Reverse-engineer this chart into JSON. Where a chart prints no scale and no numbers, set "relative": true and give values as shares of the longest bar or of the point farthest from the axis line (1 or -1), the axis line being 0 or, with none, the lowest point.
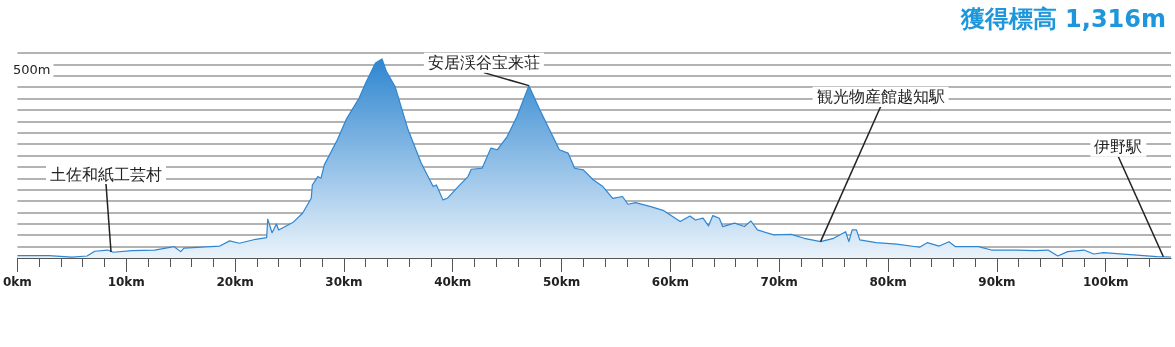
{
  "chart_data": {
    "type": "area",
    "title": "獲得標高 1,316m",
    "relative": true,
    "grid": "y",
    "color": "#2f86d0",
    "x": [
      0,
      2.9,
      5.0,
      6.4,
      7.1,
      8.3,
      8.8,
      10.5,
      12.6,
      14.4,
      15.0,
      15.3,
      18.6,
      19.5,
      20.4,
      21.9,
      22.9,
      23.0,
      23.4,
      23.8,
      24.0,
      25.3,
      26.2,
      27.0,
      27.1,
      27.6,
      27.9,
      28.2,
      29.4,
      30.2,
      31.4,
      32.0,
      32.9,
      33.5,
      33.9,
      34.7,
      35.9,
      37.1,
      38.2,
      38.5,
      39.1,
      39.5,
      40.5,
      41.4,
      41.7,
      42.7,
      43.5,
      44.1,
      45.0,
      45.9,
      47.0,
      48.0,
      49.2,
      49.8,
      50.6,
      51.2,
      52.0,
      52.9,
      53.8,
      54.7,
      55.6,
      56.1,
      56.8,
      58.2,
      59.4,
      60.9,
      61.8,
      62.3,
      63.0,
      63.5,
      63.9,
      64.5,
      64.8,
      65.9,
      66.8,
      67.4,
      68.0,
      69.5,
      71.1,
      72.3,
      73.8,
      75.0,
      76.1,
      76.4,
      76.7,
      77.1,
      77.4,
      78.9,
      80.8,
      82.9,
      83.6,
      84.7,
      85.6,
      86.2,
      88.3,
      89.5,
      91.7,
      93.5,
      94.7,
      95.6,
      96.5,
      98.0,
      98.9,
      99.8,
      104.7,
      106.0
    ],
    "values": [
      0.012,
      0.012,
      0.004,
      0.01,
      0.034,
      0.04,
      0.029,
      0.037,
      0.04,
      0.057,
      0.032,
      0.05,
      0.06,
      0.086,
      0.074,
      0.094,
      0.102,
      0.195,
      0.127,
      0.171,
      0.141,
      0.178,
      0.225,
      0.3,
      0.367,
      0.409,
      0.401,
      0.468,
      0.594,
      0.695,
      0.804,
      0.879,
      0.98,
      1.0,
      0.938,
      0.862,
      0.644,
      0.477,
      0.359,
      0.367,
      0.292,
      0.3,
      0.359,
      0.409,
      0.446,
      0.451,
      0.552,
      0.544,
      0.61,
      0.711,
      0.866,
      0.745,
      0.61,
      0.544,
      0.527,
      0.451,
      0.443,
      0.393,
      0.359,
      0.3,
      0.309,
      0.27,
      0.278,
      0.258,
      0.238,
      0.183,
      0.211,
      0.191,
      0.2,
      0.161,
      0.213,
      0.2,
      0.158,
      0.175,
      0.158,
      0.186,
      0.141,
      0.116,
      0.119,
      0.099,
      0.082,
      0.099,
      0.132,
      0.082,
      0.141,
      0.141,
      0.091,
      0.077,
      0.07,
      0.054,
      0.077,
      0.06,
      0.082,
      0.057,
      0.057,
      0.04,
      0.04,
      0.037,
      0.04,
      0.01,
      0.032,
      0.04,
      0.02,
      0.027,
      0.007,
      0.005
    ],
    "xlim": [
      0,
      106
    ],
    "xticks": [
      {
        "value": 0,
        "label": "0km"
      },
      {
        "value": 10,
        "label": "10km"
      },
      {
        "value": 20,
        "label": "20km"
      },
      {
        "value": 30,
        "label": "30km"
      },
      {
        "value": 40,
        "label": "40km"
      },
      {
        "value": 50,
        "label": "50km"
      },
      {
        "value": 60,
        "label": "60km"
      },
      {
        "value": 70,
        "label": "70km"
      },
      {
        "value": 80,
        "label": "80km"
      },
      {
        "value": 90,
        "label": "90km"
      },
      {
        "value": 100,
        "label": "100km"
      }
    ],
    "annotations": [
      "500m",
      {
        "text": "土佐和紙工芸村",
        "x": 8.6,
        "y": 0.03
      },
      {
        "text": "安居渓谷宝来荘",
        "x": 47.0,
        "y": 0.866
      },
      {
        "text": "観光物産館越知駅",
        "x": 73.8,
        "y": 0.082
      },
      {
        "text": "伊野駅",
        "x": 105.3,
        "y": 0.006
      }
    ]
  }
}
